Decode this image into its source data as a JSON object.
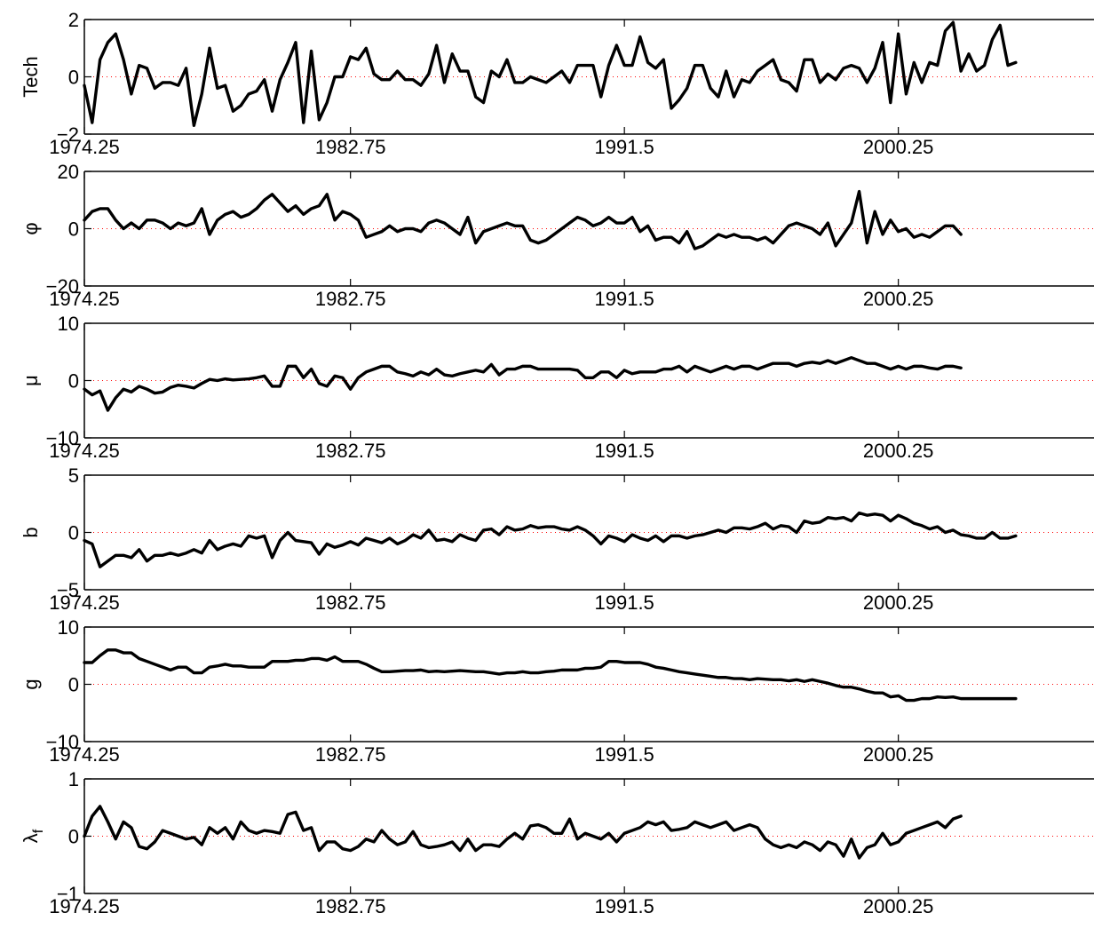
{
  "figure": {
    "background": "#ffffff"
  },
  "chart_data": [
    {
      "type": "line",
      "ylabel": "Tech",
      "ylim": [
        -2,
        2
      ],
      "yticks": [
        -2,
        0,
        2
      ],
      "ytick_labels": [
        "−2",
        "0",
        "2"
      ],
      "xlim": [
        1974.25,
        2006.5
      ],
      "xticks": [
        1974.25,
        1982.75,
        1991.5,
        2000.25
      ],
      "xtick_labels": [
        "1974.25",
        "1982.75",
        "1991.5",
        "2000.25"
      ],
      "zero_line": true,
      "line_color": "#000000",
      "zero_line_color": "#ff0000",
      "x_start": 1974.25,
      "x_step": 0.25,
      "values": [
        -0.3,
        -1.6,
        0.6,
        1.2,
        1.5,
        0.6,
        -0.6,
        0.4,
        0.3,
        -0.4,
        -0.2,
        -0.2,
        -0.3,
        0.3,
        -1.7,
        -0.6,
        1.0,
        -0.4,
        -0.3,
        -1.2,
        -1.0,
        -0.6,
        -0.5,
        -0.1,
        -1.2,
        -0.1,
        0.5,
        1.2,
        -1.6,
        0.9,
        -1.5,
        -0.9,
        0.0,
        0.0,
        0.7,
        0.6,
        1.0,
        0.1,
        -0.1,
        -0.1,
        0.2,
        -0.1,
        -0.1,
        -0.3,
        0.1,
        1.1,
        -0.2,
        0.8,
        0.2,
        0.2,
        -0.7,
        -0.9,
        0.2,
        0.0,
        0.6,
        -0.2,
        -0.2,
        0.0,
        -0.1,
        -0.2,
        0.0,
        0.2,
        -0.2,
        0.4,
        0.4,
        0.4,
        -0.7,
        0.4,
        1.1,
        0.4,
        0.4,
        1.4,
        0.5,
        0.3,
        0.6,
        -1.1,
        -0.8,
        -0.4,
        0.4,
        0.4,
        -0.4,
        -0.7,
        0.2,
        -0.7,
        -0.1,
        -0.2,
        0.2,
        0.4,
        0.6,
        -0.1,
        -0.2,
        -0.5,
        0.6,
        0.6,
        -0.2,
        0.1,
        -0.1,
        0.3,
        0.4,
        0.3,
        -0.2,
        0.3,
        1.2,
        -0.9,
        1.5,
        -0.6,
        0.5,
        -0.2,
        0.5,
        0.4,
        1.6,
        1.9,
        0.2,
        0.8,
        0.2,
        0.4,
        1.3,
        1.8,
        0.4,
        0.5
      ]
    },
    {
      "type": "line",
      "ylabel": "φ",
      "ylim": [
        -20,
        20
      ],
      "yticks": [
        -20,
        0,
        20
      ],
      "ytick_labels": [
        "−20",
        "0",
        "20"
      ],
      "xlim": [
        1974.25,
        2006.5
      ],
      "xticks": [
        1974.25,
        1982.75,
        1991.5,
        2000.25
      ],
      "xtick_labels": [
        "1974.25",
        "1982.75",
        "1991.5",
        "2000.25"
      ],
      "zero_line": true,
      "line_color": "#000000",
      "zero_line_color": "#ff0000",
      "x_start": 1974.25,
      "x_step": 0.25,
      "values": [
        3,
        6,
        7,
        7,
        3,
        0,
        2,
        0,
        3,
        3,
        2,
        0,
        2,
        1,
        2,
        7,
        -2,
        3,
        5,
        6,
        4,
        5,
        7,
        10,
        12,
        9,
        6,
        8,
        5,
        7,
        8,
        12,
        3,
        6,
        5,
        3,
        -3,
        -2,
        -1,
        1,
        -1,
        0,
        0,
        -1,
        2,
        3,
        2,
        0,
        -2,
        4,
        -5,
        -1,
        0,
        1,
        2,
        1,
        1,
        -4,
        -5,
        -4,
        -2,
        0,
        2,
        4,
        3,
        1,
        2,
        4,
        2,
        2,
        4,
        -1,
        1,
        -4,
        -3,
        -3,
        -5,
        -1,
        -7,
        -6,
        -4,
        -2,
        -3,
        -2,
        -3,
        -3,
        -4,
        -3,
        -5,
        -2,
        1,
        2,
        1,
        0,
        -2,
        2,
        -6,
        -2,
        2,
        13,
        -5,
        6,
        -2,
        3,
        -1,
        0,
        -3,
        -2,
        -3,
        -1,
        1,
        1,
        -2
      ]
    },
    {
      "type": "line",
      "ylabel": "μ",
      "ylim": [
        -10,
        10
      ],
      "yticks": [
        -10,
        0,
        10
      ],
      "ytick_labels": [
        "−10",
        "0",
        "10"
      ],
      "xlim": [
        1974.25,
        2006.5
      ],
      "xticks": [
        1974.25,
        1982.75,
        1991.5,
        2000.25
      ],
      "xtick_labels": [
        "1974.25",
        "1982.75",
        "1991.5",
        "2000.25"
      ],
      "zero_line": true,
      "line_color": "#000000",
      "zero_line_color": "#ff0000",
      "x_start": 1974.25,
      "x_step": 0.25,
      "values": [
        -1.5,
        -2.5,
        -1.8,
        -5.2,
        -3,
        -1.5,
        -2,
        -1,
        -1.5,
        -2.2,
        -2,
        -1.2,
        -0.8,
        -1,
        -1.3,
        -0.5,
        0.2,
        0,
        0.3,
        0.1,
        0.2,
        0.3,
        0.5,
        0.8,
        -1,
        -1,
        2.5,
        2.5,
        0.5,
        2,
        -0.5,
        -1,
        0.8,
        0.5,
        -1.5,
        0.5,
        1.5,
        2,
        2.5,
        2.5,
        1.5,
        1.2,
        0.8,
        1.5,
        1,
        2,
        1,
        0.8,
        1.2,
        1.5,
        1.8,
        1.5,
        2.8,
        1,
        2,
        2,
        2.5,
        2.5,
        2,
        2,
        2,
        2,
        2,
        1.8,
        0.5,
        0.5,
        1.5,
        1.5,
        0.5,
        1.8,
        1.2,
        1.5,
        1.5,
        1.5,
        2,
        2,
        2.5,
        1.5,
        2.5,
        2,
        1.5,
        2,
        2.5,
        2,
        2.5,
        2.5,
        2,
        2.5,
        3,
        3,
        3,
        2.5,
        3,
        3.2,
        3,
        3.5,
        3,
        3.5,
        4,
        3.5,
        3,
        3,
        2.5,
        2,
        2.5,
        2,
        2.5,
        2.5,
        2.2,
        2,
        2.5,
        2.5,
        2.2
      ]
    },
    {
      "type": "line",
      "ylabel": "b",
      "ylim": [
        -5,
        5
      ],
      "yticks": [
        -5,
        0,
        5
      ],
      "ytick_labels": [
        "−5",
        "0",
        "5"
      ],
      "xlim": [
        1974.25,
        2006.5
      ],
      "xticks": [
        1974.25,
        1982.75,
        1991.5,
        2000.25
      ],
      "xtick_labels": [
        "1974.25",
        "1982.75",
        "1991.5",
        "2000.25"
      ],
      "zero_line": true,
      "line_color": "#000000",
      "zero_line_color": "#ff0000",
      "x_start": 1974.25,
      "x_step": 0.25,
      "values": [
        -0.7,
        -1,
        -3,
        -2.5,
        -2,
        -2,
        -2.2,
        -1.5,
        -2.5,
        -2,
        -2,
        -1.8,
        -2,
        -1.8,
        -1.5,
        -1.8,
        -0.7,
        -1.5,
        -1.2,
        -1,
        -1.2,
        -0.3,
        -0.5,
        -0.3,
        -2.2,
        -0.7,
        0,
        -0.7,
        -0.8,
        -0.9,
        -1.9,
        -1,
        -1.3,
        -1.1,
        -0.8,
        -1.1,
        -0.5,
        -0.7,
        -0.9,
        -0.5,
        -1,
        -0.7,
        -0.2,
        -0.5,
        0.2,
        -0.7,
        -0.6,
        -0.8,
        -0.2,
        -0.5,
        -0.7,
        0.2,
        0.3,
        -0.2,
        0.5,
        0.2,
        0.3,
        0.6,
        0.4,
        0.5,
        0.5,
        0.3,
        0.2,
        0.5,
        0.2,
        -0.3,
        -1,
        -0.3,
        -0.5,
        -0.8,
        -0.2,
        -0.5,
        -0.7,
        -0.3,
        -0.8,
        -0.3,
        -0.3,
        -0.5,
        -0.3,
        -0.2,
        0,
        0.2,
        0,
        0.4,
        0.4,
        0.3,
        0.5,
        0.8,
        0.3,
        0.6,
        0.5,
        0,
        1,
        0.8,
        0.9,
        1.3,
        1.2,
        1.3,
        1,
        1.7,
        1.5,
        1.6,
        1.5,
        1,
        1.5,
        1.2,
        0.8,
        0.6,
        0.3,
        0.5,
        0,
        0.2,
        -0.2,
        -0.3,
        -0.5,
        -0.5,
        0,
        -0.5,
        -0.5,
        -0.3
      ]
    },
    {
      "type": "line",
      "ylabel": "g",
      "ylim": [
        -10,
        10
      ],
      "yticks": [
        -10,
        0,
        10
      ],
      "ytick_labels": [
        "−10",
        "0",
        "10"
      ],
      "xlim": [
        1974.25,
        2006.5
      ],
      "xticks": [
        1974.25,
        1982.75,
        1991.5,
        2000.25
      ],
      "xtick_labels": [
        "1974.25",
        "1982.75",
        "1991.5",
        "2000.25"
      ],
      "zero_line": true,
      "line_color": "#000000",
      "zero_line_color": "#ff0000",
      "x_start": 1974.25,
      "x_step": 0.25,
      "values": [
        3.8,
        3.8,
        5,
        6,
        6,
        5.5,
        5.5,
        4.5,
        4,
        3.5,
        3,
        2.5,
        3,
        3,
        2,
        2,
        3,
        3.2,
        3.5,
        3.2,
        3.2,
        3,
        3,
        3,
        4,
        4,
        4,
        4.2,
        4.2,
        4.5,
        4.5,
        4.2,
        4.8,
        4,
        4,
        4,
        3.5,
        2.8,
        2.2,
        2.2,
        2.3,
        2.4,
        2.4,
        2.5,
        2.2,
        2.3,
        2.2,
        2.3,
        2.4,
        2.3,
        2.2,
        2.2,
        2,
        1.8,
        2,
        2,
        2.2,
        2,
        2,
        2.2,
        2.3,
        2.5,
        2.5,
        2.5,
        2.8,
        2.8,
        3,
        4,
        4,
        3.8,
        3.8,
        3.8,
        3.5,
        3,
        2.8,
        2.5,
        2.2,
        2,
        1.8,
        1.6,
        1.4,
        1.2,
        1.2,
        1,
        1,
        0.8,
        1,
        0.9,
        0.8,
        0.8,
        0.6,
        0.8,
        0.5,
        0.8,
        0.5,
        0.2,
        -0.2,
        -0.5,
        -0.5,
        -0.8,
        -1.2,
        -1.5,
        -1.5,
        -2.2,
        -2,
        -2.8,
        -2.8,
        -2.5,
        -2.5,
        -2.2,
        -2.3,
        -2.2,
        -2.5,
        -2.5,
        -2.5,
        -2.5,
        -2.5,
        -2.5,
        -2.5,
        -2.5
      ]
    },
    {
      "type": "line",
      "ylabel": "λ",
      "ylabel_subscript": "f",
      "ylim": [
        -1,
        1
      ],
      "yticks": [
        -1,
        0,
        1
      ],
      "ytick_labels": [
        "−1",
        "0",
        "1"
      ],
      "xlim": [
        1974.25,
        2006.5
      ],
      "xticks": [
        1974.25,
        1982.75,
        1991.5,
        2000.25
      ],
      "xtick_labels": [
        "1974.25",
        "1982.75",
        "1991.5",
        "2000.25"
      ],
      "zero_line": true,
      "line_color": "#000000",
      "zero_line_color": "#ff0000",
      "x_start": 1974.25,
      "x_step": 0.25,
      "values": [
        0,
        0.35,
        0.52,
        0.25,
        -0.05,
        0.25,
        0.15,
        -0.18,
        -0.22,
        -0.1,
        0.1,
        0.05,
        0,
        -0.05,
        -0.02,
        -0.15,
        0.15,
        0.05,
        0.15,
        -0.05,
        0.25,
        0.1,
        0.05,
        0.1,
        0.08,
        0.05,
        0.38,
        0.42,
        0.1,
        0.15,
        -0.25,
        -0.1,
        -0.1,
        -0.22,
        -0.25,
        -0.18,
        -0.05,
        -0.1,
        0.1,
        -0.05,
        -0.15,
        -0.1,
        0.08,
        -0.15,
        -0.2,
        -0.18,
        -0.15,
        -0.1,
        -0.25,
        -0.05,
        -0.25,
        -0.15,
        -0.15,
        -0.18,
        -0.05,
        0.05,
        -0.05,
        0.18,
        0.2,
        0.15,
        0.05,
        0.05,
        0.3,
        -0.05,
        0.05,
        0,
        -0.05,
        0.05,
        -0.1,
        0.05,
        0.1,
        0.15,
        0.25,
        0.2,
        0.25,
        0.1,
        0.12,
        0.15,
        0.25,
        0.2,
        0.15,
        0.2,
        0.25,
        0.1,
        0.15,
        0.2,
        0.15,
        -0.05,
        -0.15,
        -0.2,
        -0.15,
        -0.2,
        -0.1,
        -0.15,
        -0.25,
        -0.1,
        -0.15,
        -0.35,
        -0.05,
        -0.38,
        -0.2,
        -0.15,
        0.05,
        -0.15,
        -0.1,
        0.05,
        0.1,
        0.15,
        0.2,
        0.25,
        0.15,
        0.3,
        0.35
      ]
    }
  ]
}
